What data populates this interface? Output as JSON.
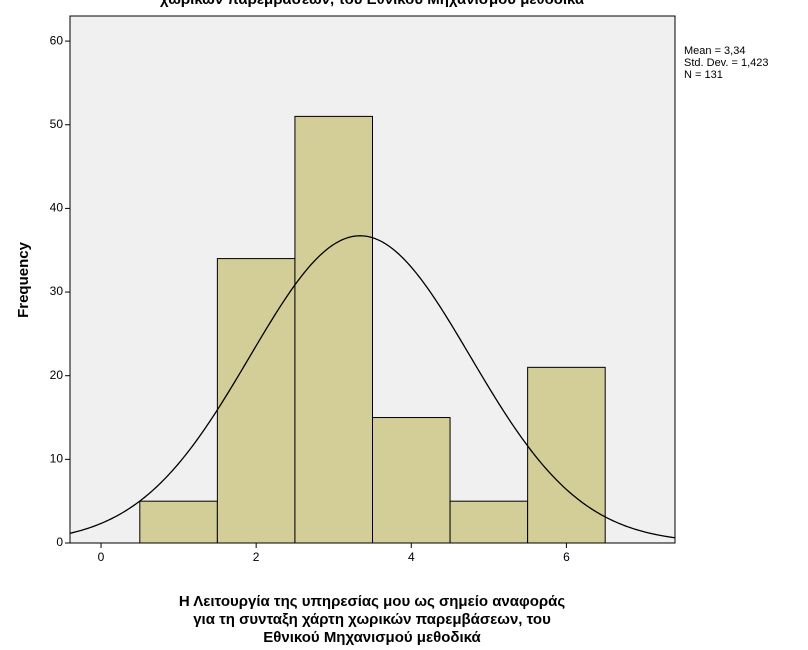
{
  "chart_data": {
    "type": "histogram",
    "title": "χωρικών παρεμβάσεων, του Εθνικού Μηχανισμού μεθοδικά",
    "x_label": [
      "Η Λειτουργία της υπηρεσίας μου ως σημείο αναφοράς",
      "για τη συνταξη χάρτη χωρικών παρεμβάσεων, του",
      "Εθνικού Μηχανισμού μεθοδικά"
    ],
    "y_label": "Frequency",
    "bins": [
      0.5,
      1.5,
      2.5,
      3.5,
      4.5,
      5.5,
      6.5
    ],
    "values": [
      5,
      34,
      51,
      15,
      5,
      21
    ],
    "color": "#d3ce98",
    "xlim": [
      -0.4,
      7.4
    ],
    "ylim": [
      0,
      63
    ],
    "xticks": [
      0,
      2,
      4,
      6
    ],
    "yticks": [
      0,
      10,
      20,
      30,
      40,
      50,
      60
    ],
    "stats": [
      {
        "value": 3.34,
        "label": "Mean = 3,34"
      },
      {
        "value": 1.423,
        "label": "Std. Dev. = 1,423"
      },
      {
        "value": 131,
        "label": "N = 131"
      }
    ]
  }
}
